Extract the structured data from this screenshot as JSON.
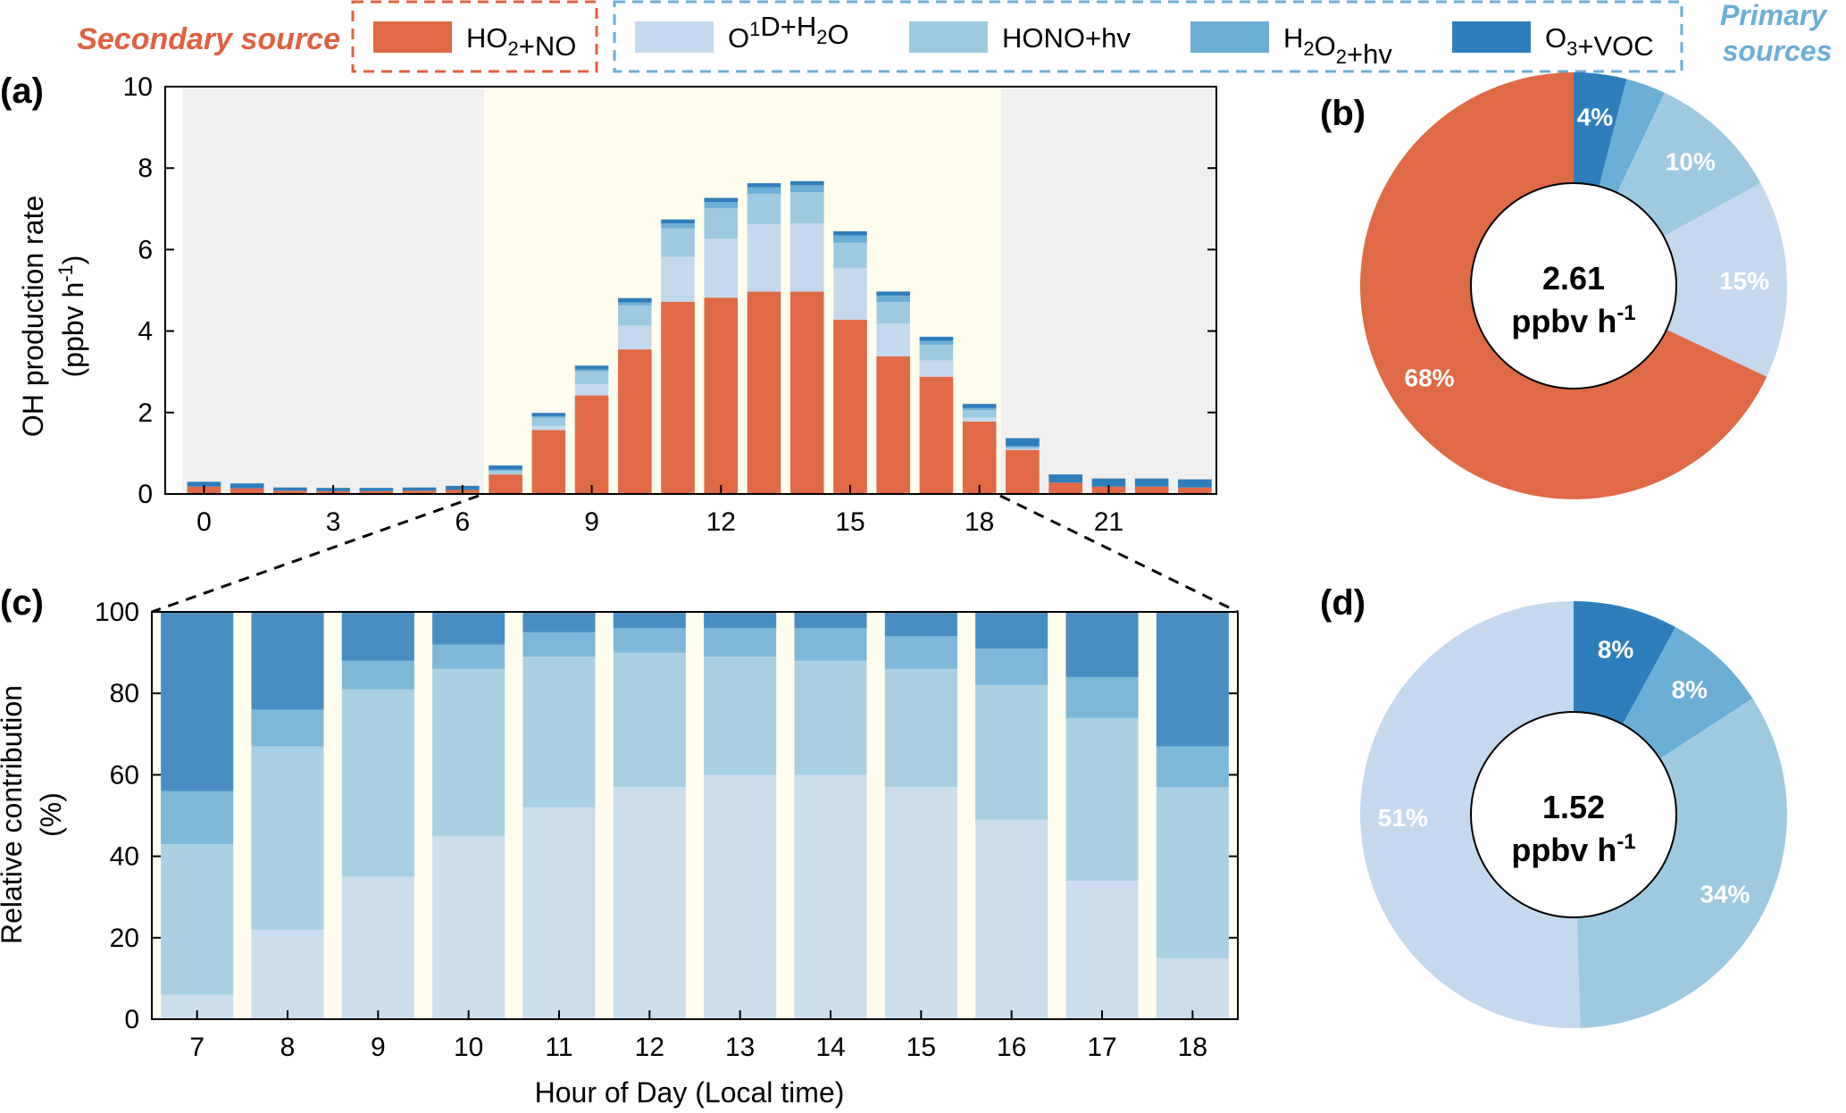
{
  "colors": {
    "HO2_NO": "#E06A46",
    "O1D_H2O": "#C5D9EE",
    "HONO_hv": "#9ECAE1",
    "H2O2_hv": "#6BAED6",
    "O3_VOC": "#2F7EBC",
    "night_shade": "#F0F0F0",
    "day_shade": "#FEFDEE",
    "secondary_text": "#E0603F",
    "primary_text": "#6BAED6"
  },
  "legend": {
    "secondary_label": "Secondary source",
    "primary_label": [
      "Primary",
      "sources"
    ],
    "entries": [
      {
        "key": "HO2_NO",
        "parts": [
          [
            "HO",
            ""
          ],
          [
            "2",
            "sub"
          ],
          [
            "+NO",
            ""
          ]
        ]
      },
      {
        "key": "O1D_H2O",
        "parts": [
          [
            "O",
            ""
          ],
          [
            "1",
            "sup"
          ],
          [
            "D+H",
            ""
          ],
          [
            "2",
            "sub"
          ],
          [
            "O",
            ""
          ]
        ]
      },
      {
        "key": "HONO_hv",
        "parts": [
          [
            "HONO+hv",
            ""
          ]
        ]
      },
      {
        "key": "H2O2_hv",
        "parts": [
          [
            "H",
            ""
          ],
          [
            "2",
            "sub"
          ],
          [
            "O",
            ""
          ],
          [
            "2",
            "sub"
          ],
          [
            "+hv",
            ""
          ]
        ]
      },
      {
        "key": "O3_VOC",
        "parts": [
          [
            "O",
            ""
          ],
          [
            "3",
            "sub"
          ],
          [
            "+VOC",
            ""
          ]
        ]
      }
    ]
  },
  "chart_data": [
    {
      "panel": "(a)",
      "type": "bar",
      "stacked": true,
      "ylabel_line1": "OH production rate",
      "ylabel_line2": "(ppbv h⁻¹)",
      "ylim": [
        0,
        10
      ],
      "yticks": [
        0,
        2,
        4,
        6,
        8,
        10
      ],
      "xticks": [
        0,
        3,
        6,
        9,
        12,
        15,
        18,
        21
      ],
      "daytime_hours": [
        7,
        18
      ],
      "x": [
        0,
        1,
        2,
        3,
        4,
        5,
        6,
        7,
        8,
        9,
        10,
        11,
        12,
        13,
        14,
        15,
        16,
        17,
        18,
        19,
        20,
        21,
        22,
        23
      ],
      "series": [
        {
          "key": "HO2_NO",
          "values": [
            0.18,
            0.14,
            0.08,
            0.07,
            0.07,
            0.08,
            0.1,
            0.48,
            1.57,
            2.42,
            3.55,
            4.72,
            4.82,
            4.97,
            4.97,
            4.28,
            3.38,
            2.88,
            1.78,
            1.08,
            0.28,
            0.18,
            0.18,
            0.16
          ]
        },
        {
          "key": "O1D_H2O",
          "values": [
            0,
            0,
            0,
            0,
            0,
            0,
            0,
            0.01,
            0.1,
            0.27,
            0.58,
            1.1,
            1.45,
            1.65,
            1.67,
            1.27,
            0.8,
            0.4,
            0.09,
            0.02,
            0,
            0,
            0,
            0
          ]
        },
        {
          "key": "HONO_hv",
          "values": [
            0,
            0,
            0,
            0,
            0,
            0,
            0,
            0.08,
            0.2,
            0.32,
            0.5,
            0.7,
            0.75,
            0.75,
            0.77,
            0.62,
            0.53,
            0.38,
            0.19,
            0.05,
            0,
            0,
            0,
            0
          ]
        },
        {
          "key": "H2O2_hv",
          "values": [
            0,
            0,
            0,
            0,
            0,
            0,
            0,
            0.03,
            0.04,
            0.05,
            0.07,
            0.12,
            0.15,
            0.16,
            0.17,
            0.18,
            0.16,
            0.1,
            0.05,
            0.02,
            0,
            0,
            0,
            0
          ]
        },
        {
          "key": "O3_VOC",
          "values": [
            0.12,
            0.12,
            0.08,
            0.08,
            0.08,
            0.08,
            0.1,
            0.1,
            0.08,
            0.09,
            0.11,
            0.1,
            0.1,
            0.1,
            0.1,
            0.1,
            0.1,
            0.1,
            0.1,
            0.2,
            0.2,
            0.2,
            0.2,
            0.2
          ]
        }
      ]
    },
    {
      "panel": "(b)",
      "type": "pie",
      "donut": true,
      "center_value": "2.61",
      "center_unit": "ppbv h",
      "center_unit_sup": "-1",
      "slices": [
        {
          "key": "O3_VOC",
          "value": 4,
          "label": "4%"
        },
        {
          "key": "H2O2_hv",
          "value": 3,
          "label": ""
        },
        {
          "key": "HONO_hv",
          "value": 10,
          "label": "10%"
        },
        {
          "key": "O1D_H2O",
          "value": 15,
          "label": "15%"
        },
        {
          "key": "HO2_NO",
          "value": 68,
          "label": "68%"
        }
      ]
    },
    {
      "panel": "(c)",
      "type": "bar",
      "stacked": true,
      "percent": true,
      "ylabel_line1": "Relative contribution",
      "ylabel_line2": "(%)",
      "xlabel": "Hour of Day (Local time)",
      "ylim": [
        0,
        100
      ],
      "yticks": [
        0,
        20,
        40,
        60,
        80,
        100
      ],
      "categories": [
        "7",
        "8",
        "9",
        "10",
        "11",
        "12",
        "13",
        "14",
        "15",
        "16",
        "17",
        "18"
      ],
      "series": [
        {
          "key": "O1D_H2O",
          "values": [
            6,
            22,
            35,
            45,
            52,
            57,
            60,
            60,
            57,
            49,
            34,
            15
          ]
        },
        {
          "key": "HONO_hv",
          "values": [
            37,
            45,
            46,
            41,
            37,
            33,
            29,
            28,
            29,
            33,
            40,
            42
          ]
        },
        {
          "key": "H2O2_hv",
          "values": [
            13,
            9,
            7,
            6,
            6,
            6,
            7,
            8,
            8,
            9,
            10,
            10
          ]
        },
        {
          "key": "O3_VOC",
          "values": [
            44,
            24,
            12,
            8,
            5,
            4,
            4,
            4,
            6,
            9,
            16,
            33
          ]
        }
      ]
    },
    {
      "panel": "(d)",
      "type": "pie",
      "donut": true,
      "center_value": "1.52",
      "center_unit": "ppbv h",
      "center_unit_sup": "-1",
      "slices": [
        {
          "key": "O3_VOC",
          "value": 8,
          "label": "8%"
        },
        {
          "key": "H2O2_hv",
          "value": 8,
          "label": "8%"
        },
        {
          "key": "HONO_hv",
          "value": 34,
          "label": "34%"
        },
        {
          "key": "O1D_H2O",
          "value": 51,
          "label": "51%"
        }
      ]
    }
  ]
}
